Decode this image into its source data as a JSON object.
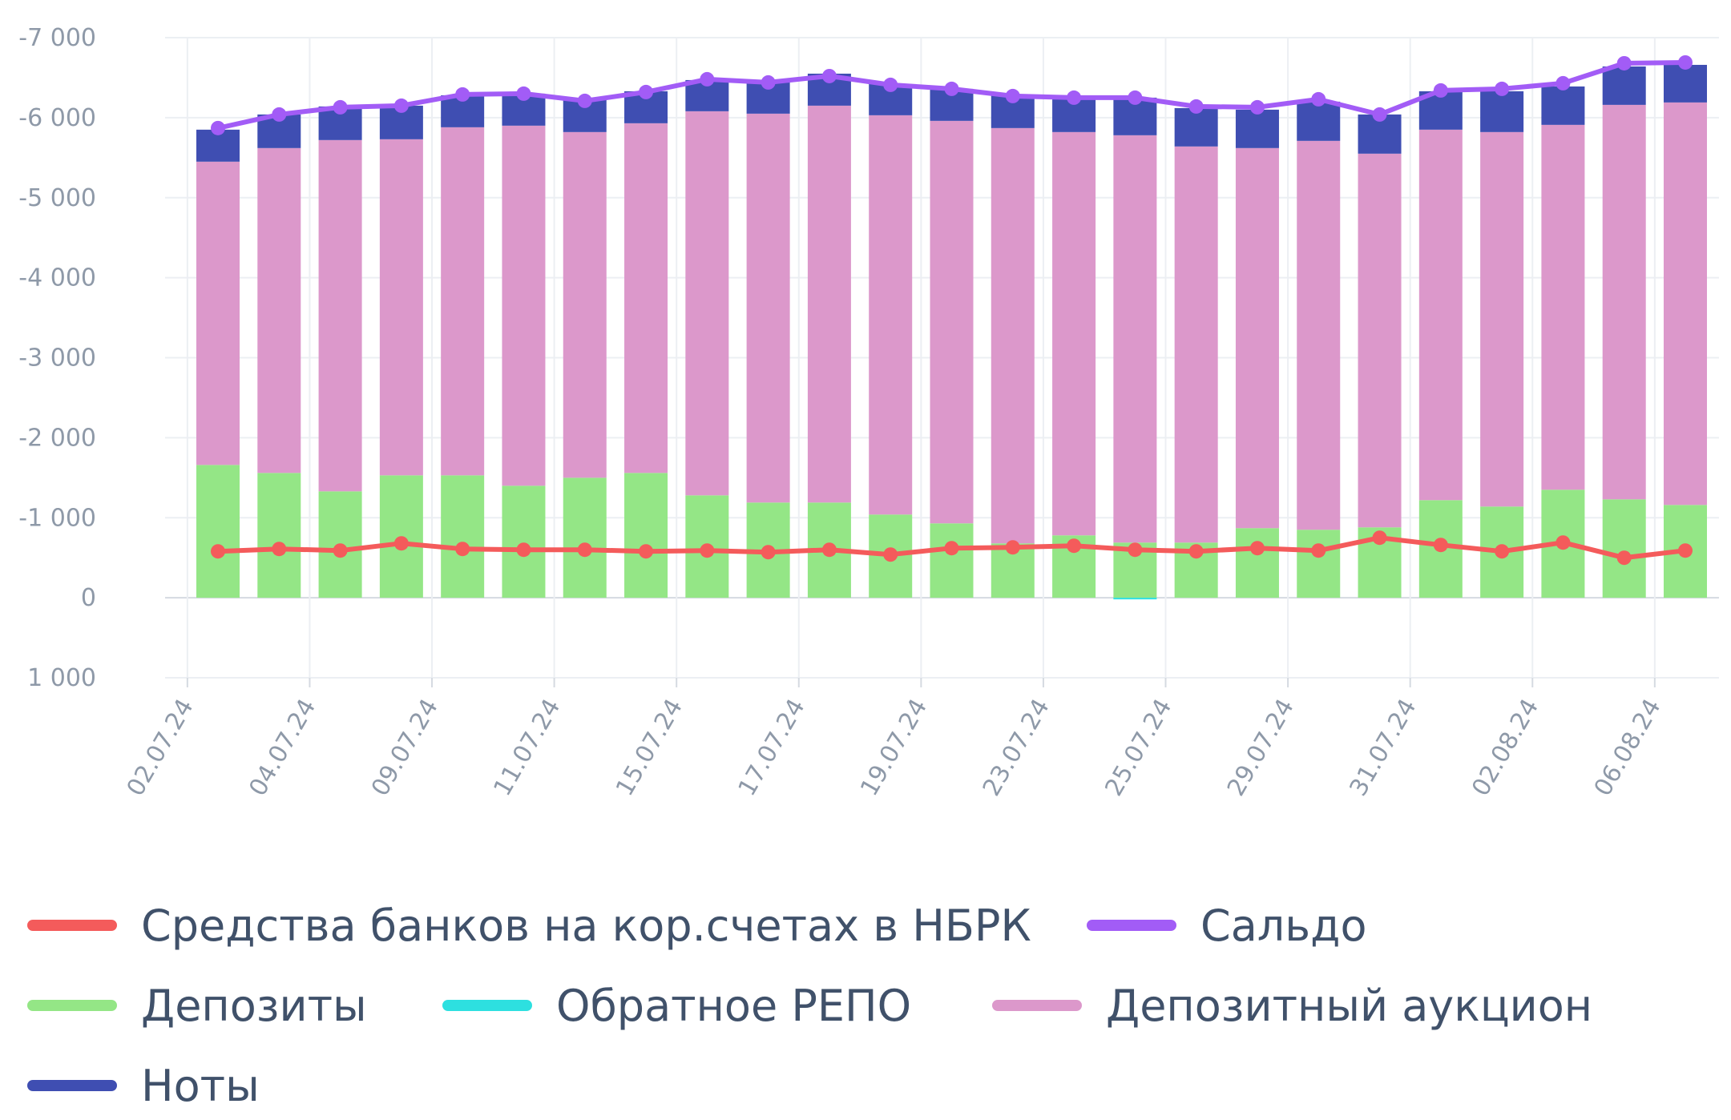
{
  "chart_data": {
    "type": "bar",
    "stacked": true,
    "yaxis_reversed": true,
    "ylim": [
      1000,
      -7000
    ],
    "yticks": [
      {
        "value": -7000,
        "label": "-7 000"
      },
      {
        "value": -6000,
        "label": "-6 000"
      },
      {
        "value": -5000,
        "label": "-5 000"
      },
      {
        "value": -4000,
        "label": "-4 000"
      },
      {
        "value": -3000,
        "label": "-3 000"
      },
      {
        "value": -2000,
        "label": "-2 000"
      },
      {
        "value": -1000,
        "label": "-1 000"
      },
      {
        "value": 0,
        "label": "0"
      },
      {
        "value": 1000,
        "label": "1 000"
      }
    ],
    "xtick_labels": [
      "02.07.24",
      "04.07.24",
      "09.07.24",
      "11.07.24",
      "15.07.24",
      "17.07.24",
      "19.07.24",
      "23.07.24",
      "25.07.24",
      "29.07.24",
      "31.07.24",
      "02.08.24",
      "06.08.24"
    ],
    "n_bars": 25,
    "grid": true,
    "legend_position": "bottom",
    "series": [
      {
        "name": "Средства банков на кор.счетах в НБРК",
        "type": "line",
        "color": "#f45b5b",
        "values": [
          -580,
          -610,
          -590,
          -680,
          -610,
          -600,
          -600,
          -580,
          -590,
          -570,
          -600,
          -540,
          -620,
          -630,
          -650,
          -600,
          -580,
          -620,
          -590,
          -750,
          -660,
          -580,
          -690,
          -500,
          -590
        ]
      },
      {
        "name": "Сальдо",
        "type": "line",
        "color": "#a25cf6",
        "values": [
          -5870,
          -6040,
          -6130,
          -6150,
          -6290,
          -6300,
          -6210,
          -6320,
          -6480,
          -6440,
          -6520,
          -6410,
          -6360,
          -6270,
          -6250,
          -6250,
          -6140,
          -6130,
          -6230,
          -6040,
          -6340,
          -6360,
          -6430,
          -6680,
          -6690
        ]
      },
      {
        "name": "Депозиты",
        "type": "bar",
        "color": "#94e686",
        "values": [
          -1660,
          -1560,
          -1330,
          -1530,
          -1530,
          -1400,
          -1500,
          -1560,
          -1280,
          -1190,
          -1190,
          -1040,
          -930,
          -680,
          -780,
          -690,
          -690,
          -870,
          -850,
          -880,
          -1220,
          -1140,
          -1350,
          -1230,
          -1160
        ]
      },
      {
        "name": "Обратное РЕПО",
        "type": "bar",
        "color": "#2de0e0",
        "values": [
          0,
          0,
          0,
          0,
          0,
          0,
          0,
          0,
          0,
          0,
          0,
          0,
          0,
          0,
          0,
          20,
          0,
          0,
          0,
          0,
          0,
          0,
          0,
          0,
          0
        ]
      },
      {
        "name": "Депозитный аукцион",
        "type": "bar",
        "color": "#dc98cb",
        "values": [
          -3790,
          -4060,
          -4390,
          -4200,
          -4350,
          -4500,
          -4320,
          -4370,
          -4800,
          -4860,
          -4960,
          -4990,
          -5030,
          -5190,
          -5040,
          -5090,
          -4950,
          -4750,
          -4860,
          -4670,
          -4630,
          -4680,
          -4560,
          -4930,
          -5030
        ]
      },
      {
        "name": "Ноты",
        "type": "bar",
        "color": "#3f4eb2",
        "values": [
          -400,
          -420,
          -420,
          -420,
          -400,
          -400,
          -400,
          -400,
          -390,
          -400,
          -400,
          -390,
          -400,
          -410,
          -410,
          -470,
          -480,
          -480,
          -490,
          -490,
          -480,
          -510,
          -480,
          -480,
          -470
        ]
      }
    ]
  }
}
